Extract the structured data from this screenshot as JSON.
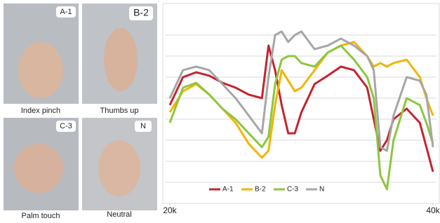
{
  "panels": [
    {
      "badge": "A-1",
      "caption": "Index pinch"
    },
    {
      "badge": "B-2",
      "caption": "Thumbs up"
    },
    {
      "badge": "C-3",
      "caption": "Palm touch"
    },
    {
      "badge": "N",
      "caption": "Neutral"
    }
  ],
  "chart_data": {
    "type": "line",
    "x": [
      20000,
      21000,
      22000,
      23000,
      24000,
      25000,
      26000,
      27000,
      27500,
      28000,
      28500,
      29000,
      29500,
      30000,
      31000,
      32000,
      33000,
      34000,
      35000,
      35500,
      36000,
      36500,
      37000,
      38000,
      39000,
      39500,
      40000
    ],
    "xlim": [
      20000,
      40000
    ],
    "xticks": [
      {
        "value": 20000,
        "label": "20k"
      },
      {
        "value": 40000,
        "label": "40k"
      }
    ],
    "ylim": [
      0,
      9
    ],
    "grid": true,
    "legend": "bottom",
    "series": [
      {
        "name": "A-1",
        "color": "#c4242f",
        "values": [
          4.67,
          6,
          6.23,
          6.07,
          5.73,
          5.5,
          5.17,
          5,
          7.5,
          6.33,
          4.67,
          3.33,
          3.33,
          4.33,
          5.67,
          6.07,
          6.5,
          6.33,
          5.5,
          4,
          2.5,
          3,
          4,
          4.5,
          3.83,
          2.67,
          1.5
        ]
      },
      {
        "name": "B-2",
        "color": "#f4b400",
        "values": [
          4.33,
          5.33,
          5.67,
          5.17,
          4.5,
          3.83,
          2.83,
          2.17,
          2.5,
          4.67,
          6.33,
          5.83,
          5.33,
          5.5,
          6.33,
          7.17,
          7.5,
          7.67,
          7,
          6.5,
          6.67,
          6.5,
          6.67,
          6.83,
          6,
          5,
          4.17
        ]
      },
      {
        "name": "C-3",
        "color": "#8cc63f",
        "values": [
          3.83,
          5.5,
          5.73,
          5.17,
          4.5,
          4,
          3.33,
          2.67,
          3.17,
          5.67,
          6.83,
          7,
          7,
          6.67,
          6.5,
          7.17,
          7.5,
          6.83,
          6,
          5,
          1.33,
          0.67,
          3,
          5,
          4.67,
          3.83,
          2.83
        ]
      },
      {
        "name": "N",
        "color": "#a6a6a6",
        "values": [
          5,
          6.33,
          6.5,
          6.33,
          5.67,
          5,
          4.17,
          3.33,
          6,
          8,
          8.17,
          7.67,
          8,
          8.17,
          7.33,
          7.5,
          7.83,
          7.5,
          7,
          6.33,
          2.67,
          2.5,
          4.17,
          6,
          5.83,
          5.17,
          2.67
        ]
      }
    ]
  }
}
